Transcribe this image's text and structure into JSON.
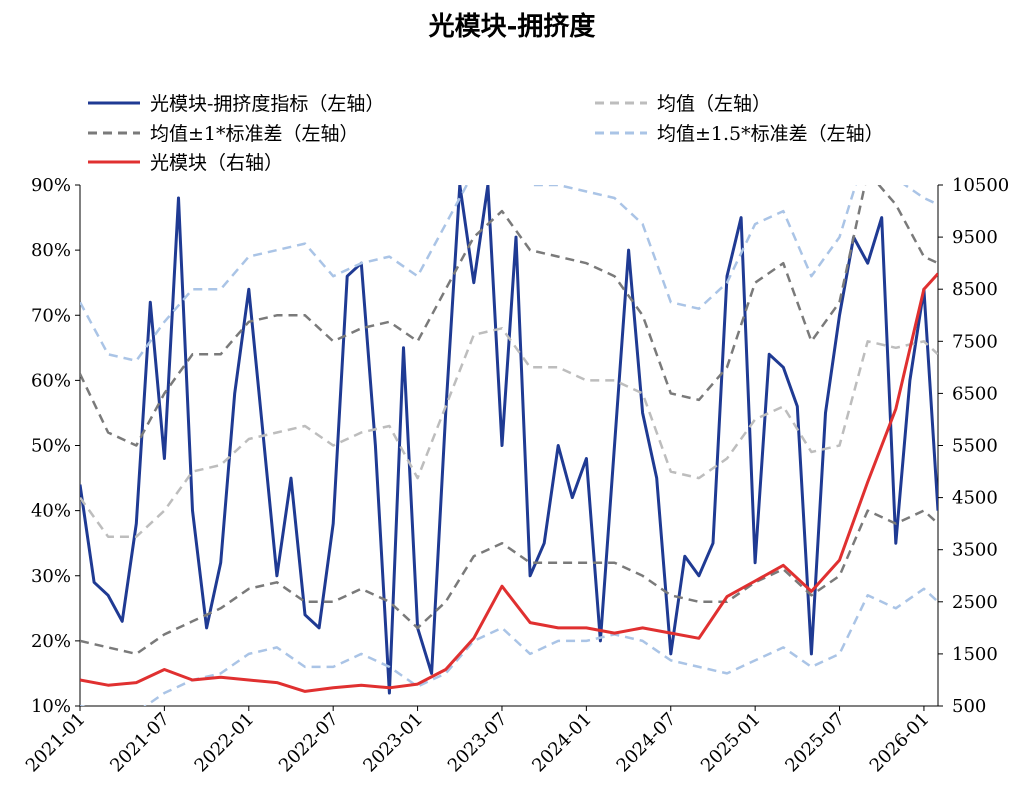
{
  "chart_data": {
    "type": "line",
    "title": "光模块-拥挤度",
    "legend_position": "top",
    "grid": false,
    "y_left": {
      "min": 0.1,
      "max": 0.9,
      "ticks": [
        "10%",
        "20%",
        "30%",
        "40%",
        "50%",
        "60%",
        "70%",
        "80%",
        "90%"
      ]
    },
    "y_right": {
      "min": 500,
      "max": 10500,
      "ticks": [
        "500",
        "1500",
        "2500",
        "3500",
        "4500",
        "5500",
        "6500",
        "7500",
        "8500",
        "9500",
        "10500"
      ]
    },
    "x_ticks": [
      "2021-01",
      "2021-07",
      "2022-01",
      "2022-07",
      "2023-01",
      "2023-07",
      "2024-01",
      "2024-07",
      "2025-01",
      "2025-07",
      "2026-01"
    ],
    "x_range": [
      "2021-01",
      "2026-02"
    ],
    "series": [
      {
        "name": "光模块-拥挤度指标（左轴）",
        "axis": "left",
        "color": "#1f3a93",
        "style": "solid",
        "points": [
          [
            "2021-01",
            0.44
          ],
          [
            "2021-02",
            0.29
          ],
          [
            "2021-03",
            0.27
          ],
          [
            "2021-04",
            0.23
          ],
          [
            "2021-05",
            0.38
          ],
          [
            "2021-06",
            0.72
          ],
          [
            "2021-07",
            0.48
          ],
          [
            "2021-08",
            0.88
          ],
          [
            "2021-09",
            0.4
          ],
          [
            "2021-10",
            0.22
          ],
          [
            "2021-11",
            0.32
          ],
          [
            "2021-12",
            0.58
          ],
          [
            "2022-01",
            0.74
          ],
          [
            "2022-02",
            0.52
          ],
          [
            "2022-03",
            0.3
          ],
          [
            "2022-04",
            0.45
          ],
          [
            "2022-05",
            0.24
          ],
          [
            "2022-06",
            0.22
          ],
          [
            "2022-07",
            0.38
          ],
          [
            "2022-08",
            0.76
          ],
          [
            "2022-09",
            0.78
          ],
          [
            "2022-10",
            0.5
          ],
          [
            "2022-11",
            0.12
          ],
          [
            "2022-12",
            0.65
          ],
          [
            "2023-01",
            0.22
          ],
          [
            "2023-02",
            0.15
          ],
          [
            "2023-03",
            0.55
          ],
          [
            "2023-04",
            0.9
          ],
          [
            "2023-05",
            0.75
          ],
          [
            "2023-06",
            0.9
          ],
          [
            "2023-07",
            0.5
          ],
          [
            "2023-08",
            0.82
          ],
          [
            "2023-09",
            0.3
          ],
          [
            "2023-10",
            0.35
          ],
          [
            "2023-11",
            0.5
          ],
          [
            "2023-12",
            0.42
          ],
          [
            "2024-01",
            0.48
          ],
          [
            "2024-02",
            0.2
          ],
          [
            "2024-03",
            0.5
          ],
          [
            "2024-04",
            0.8
          ],
          [
            "2024-05",
            0.55
          ],
          [
            "2024-06",
            0.45
          ],
          [
            "2024-07",
            0.18
          ],
          [
            "2024-08",
            0.33
          ],
          [
            "2024-09",
            0.3
          ],
          [
            "2024-10",
            0.35
          ],
          [
            "2024-11",
            0.76
          ],
          [
            "2024-12",
            0.85
          ],
          [
            "2025-01",
            0.32
          ],
          [
            "2025-02",
            0.64
          ],
          [
            "2025-03",
            0.62
          ],
          [
            "2025-04",
            0.56
          ],
          [
            "2025-05",
            0.18
          ],
          [
            "2025-06",
            0.55
          ],
          [
            "2025-07",
            0.7
          ],
          [
            "2025-08",
            0.82
          ],
          [
            "2025-09",
            0.78
          ],
          [
            "2025-10",
            0.85
          ],
          [
            "2025-11",
            0.35
          ],
          [
            "2025-12",
            0.6
          ],
          [
            "2026-01",
            0.74
          ],
          [
            "2026-02",
            0.4
          ]
        ]
      },
      {
        "name": "均值（左轴）",
        "axis": "left",
        "color": "#bdbdbd",
        "style": "dashed",
        "points": [
          [
            "2021-01",
            0.42
          ],
          [
            "2021-03",
            0.36
          ],
          [
            "2021-05",
            0.36
          ],
          [
            "2021-07",
            0.4
          ],
          [
            "2021-09",
            0.46
          ],
          [
            "2021-11",
            0.47
          ],
          [
            "2022-01",
            0.51
          ],
          [
            "2022-03",
            0.52
          ],
          [
            "2022-05",
            0.53
          ],
          [
            "2022-07",
            0.5
          ],
          [
            "2022-09",
            0.52
          ],
          [
            "2022-11",
            0.53
          ],
          [
            "2023-01",
            0.45
          ],
          [
            "2023-03",
            0.56
          ],
          [
            "2023-05",
            0.67
          ],
          [
            "2023-07",
            0.68
          ],
          [
            "2023-09",
            0.62
          ],
          [
            "2023-11",
            0.62
          ],
          [
            "2024-01",
            0.6
          ],
          [
            "2024-03",
            0.6
          ],
          [
            "2024-05",
            0.58
          ],
          [
            "2024-07",
            0.46
          ],
          [
            "2024-09",
            0.45
          ],
          [
            "2024-11",
            0.48
          ],
          [
            "2025-01",
            0.54
          ],
          [
            "2025-03",
            0.56
          ],
          [
            "2025-05",
            0.49
          ],
          [
            "2025-07",
            0.5
          ],
          [
            "2025-09",
            0.66
          ],
          [
            "2025-11",
            0.65
          ],
          [
            "2026-01",
            0.66
          ],
          [
            "2026-02",
            0.64
          ]
        ]
      },
      {
        "name": "均值±1*标准差（左轴）",
        "axis": "left",
        "color": "#7a7a7a",
        "style": "dashed",
        "points": [
          [
            "2021-01",
            0.61
          ],
          [
            "2021-03",
            0.52
          ],
          [
            "2021-05",
            0.5
          ],
          [
            "2021-07",
            0.58
          ],
          [
            "2021-09",
            0.64
          ],
          [
            "2021-11",
            0.64
          ],
          [
            "2022-01",
            0.69
          ],
          [
            "2022-03",
            0.7
          ],
          [
            "2022-05",
            0.7
          ],
          [
            "2022-07",
            0.66
          ],
          [
            "2022-09",
            0.68
          ],
          [
            "2022-11",
            0.69
          ],
          [
            "2023-01",
            0.66
          ],
          [
            "2023-03",
            0.74
          ],
          [
            "2023-05",
            0.82
          ],
          [
            "2023-07",
            0.86
          ],
          [
            "2023-09",
            0.8
          ],
          [
            "2023-11",
            0.79
          ],
          [
            "2024-01",
            0.78
          ],
          [
            "2024-03",
            0.76
          ],
          [
            "2024-05",
            0.7
          ],
          [
            "2024-07",
            0.58
          ],
          [
            "2024-09",
            0.57
          ],
          [
            "2024-11",
            0.62
          ],
          [
            "2025-01",
            0.75
          ],
          [
            "2025-03",
            0.78
          ],
          [
            "2025-05",
            0.66
          ],
          [
            "2025-07",
            0.72
          ],
          [
            "2025-09",
            0.92
          ],
          [
            "2025-11",
            0.87
          ],
          [
            "2026-01",
            0.79
          ],
          [
            "2026-02",
            0.78
          ]
        ]
      },
      {
        "name": "均值±1*标准差（左轴）_lower",
        "axis": "left",
        "color": "#7a7a7a",
        "style": "dashed",
        "points": [
          [
            "2021-01",
            0.2
          ],
          [
            "2021-03",
            0.19
          ],
          [
            "2021-05",
            0.18
          ],
          [
            "2021-07",
            0.21
          ],
          [
            "2021-09",
            0.23
          ],
          [
            "2021-11",
            0.25
          ],
          [
            "2022-01",
            0.28
          ],
          [
            "2022-03",
            0.29
          ],
          [
            "2022-05",
            0.26
          ],
          [
            "2022-07",
            0.26
          ],
          [
            "2022-09",
            0.28
          ],
          [
            "2022-11",
            0.26
          ],
          [
            "2023-01",
            0.22
          ],
          [
            "2023-03",
            0.26
          ],
          [
            "2023-05",
            0.33
          ],
          [
            "2023-07",
            0.35
          ],
          [
            "2023-09",
            0.32
          ],
          [
            "2023-11",
            0.32
          ],
          [
            "2024-01",
            0.32
          ],
          [
            "2024-03",
            0.32
          ],
          [
            "2024-05",
            0.3
          ],
          [
            "2024-07",
            0.27
          ],
          [
            "2024-09",
            0.26
          ],
          [
            "2024-11",
            0.26
          ],
          [
            "2025-01",
            0.29
          ],
          [
            "2025-03",
            0.31
          ],
          [
            "2025-05",
            0.27
          ],
          [
            "2025-07",
            0.3
          ],
          [
            "2025-09",
            0.4
          ],
          [
            "2025-11",
            0.38
          ],
          [
            "2026-01",
            0.4
          ],
          [
            "2026-02",
            0.38
          ]
        ]
      },
      {
        "name": "均值±1.5*标准差（左轴）",
        "axis": "left",
        "color": "#aac4e6",
        "style": "dashed",
        "points": [
          [
            "2021-01",
            0.72
          ],
          [
            "2021-03",
            0.64
          ],
          [
            "2021-05",
            0.63
          ],
          [
            "2021-07",
            0.69
          ],
          [
            "2021-09",
            0.74
          ],
          [
            "2021-11",
            0.74
          ],
          [
            "2022-01",
            0.79
          ],
          [
            "2022-03",
            0.8
          ],
          [
            "2022-05",
            0.81
          ],
          [
            "2022-07",
            0.76
          ],
          [
            "2022-09",
            0.78
          ],
          [
            "2022-11",
            0.79
          ],
          [
            "2023-01",
            0.76
          ],
          [
            "2023-03",
            0.84
          ],
          [
            "2023-05",
            0.92
          ],
          [
            "2023-07",
            0.95
          ],
          [
            "2023-09",
            0.9
          ],
          [
            "2023-11",
            0.9
          ],
          [
            "2024-01",
            0.89
          ],
          [
            "2024-03",
            0.88
          ],
          [
            "2024-05",
            0.84
          ],
          [
            "2024-07",
            0.72
          ],
          [
            "2024-09",
            0.71
          ],
          [
            "2024-11",
            0.75
          ],
          [
            "2025-01",
            0.84
          ],
          [
            "2025-03",
            0.86
          ],
          [
            "2025-05",
            0.76
          ],
          [
            "2025-07",
            0.82
          ],
          [
            "2025-09",
            0.96
          ],
          [
            "2025-11",
            0.91
          ],
          [
            "2026-01",
            0.88
          ],
          [
            "2026-02",
            0.87
          ]
        ]
      },
      {
        "name": "均值±1.5*标准差（左轴）_lower",
        "axis": "left",
        "color": "#aac4e6",
        "style": "dashed",
        "points": [
          [
            "2021-01",
            0.1
          ],
          [
            "2021-03",
            0.09
          ],
          [
            "2021-05",
            0.09
          ],
          [
            "2021-07",
            0.12
          ],
          [
            "2021-09",
            0.14
          ],
          [
            "2021-11",
            0.15
          ],
          [
            "2022-01",
            0.18
          ],
          [
            "2022-03",
            0.19
          ],
          [
            "2022-05",
            0.16
          ],
          [
            "2022-07",
            0.16
          ],
          [
            "2022-09",
            0.18
          ],
          [
            "2022-11",
            0.16
          ],
          [
            "2023-01",
            0.13
          ],
          [
            "2023-03",
            0.15
          ],
          [
            "2023-05",
            0.2
          ],
          [
            "2023-07",
            0.22
          ],
          [
            "2023-09",
            0.18
          ],
          [
            "2023-11",
            0.2
          ],
          [
            "2024-01",
            0.2
          ],
          [
            "2024-03",
            0.21
          ],
          [
            "2024-05",
            0.2
          ],
          [
            "2024-07",
            0.17
          ],
          [
            "2024-09",
            0.16
          ],
          [
            "2024-11",
            0.15
          ],
          [
            "2025-01",
            0.17
          ],
          [
            "2025-03",
            0.19
          ],
          [
            "2025-05",
            0.16
          ],
          [
            "2025-07",
            0.18
          ],
          [
            "2025-09",
            0.27
          ],
          [
            "2025-11",
            0.25
          ],
          [
            "2026-01",
            0.28
          ],
          [
            "2026-02",
            0.26
          ]
        ]
      },
      {
        "name": "光模块（右轴）",
        "axis": "right",
        "color": "#e03030",
        "style": "solid",
        "points": [
          [
            "2021-01",
            1000
          ],
          [
            "2021-03",
            900
          ],
          [
            "2021-05",
            950
          ],
          [
            "2021-07",
            1200
          ],
          [
            "2021-09",
            1000
          ],
          [
            "2021-11",
            1050
          ],
          [
            "2022-01",
            1000
          ],
          [
            "2022-03",
            950
          ],
          [
            "2022-05",
            780
          ],
          [
            "2022-07",
            850
          ],
          [
            "2022-09",
            900
          ],
          [
            "2022-11",
            850
          ],
          [
            "2023-01",
            920
          ],
          [
            "2023-03",
            1200
          ],
          [
            "2023-05",
            1800
          ],
          [
            "2023-07",
            2800
          ],
          [
            "2023-09",
            2100
          ],
          [
            "2023-11",
            2000
          ],
          [
            "2024-01",
            2000
          ],
          [
            "2024-03",
            1900
          ],
          [
            "2024-05",
            2000
          ],
          [
            "2024-07",
            1900
          ],
          [
            "2024-09",
            1800
          ],
          [
            "2024-11",
            2600
          ],
          [
            "2025-01",
            2900
          ],
          [
            "2025-03",
            3200
          ],
          [
            "2025-05",
            2700
          ],
          [
            "2025-07",
            3300
          ],
          [
            "2025-09",
            4800
          ],
          [
            "2025-11",
            6200
          ],
          [
            "2026-01",
            8500
          ],
          [
            "2026-02",
            8800
          ]
        ]
      }
    ]
  },
  "legend": {
    "items": [
      {
        "label": "光模块-拥挤度指标（左轴）",
        "color": "#1f3a93",
        "style": "solid"
      },
      {
        "label": "均值（左轴）",
        "color": "#bdbdbd",
        "style": "dashed"
      },
      {
        "label": "均值±1*标准差（左轴）",
        "color": "#7a7a7a",
        "style": "dashed"
      },
      {
        "label": "均值±1.5*标准差（左轴）",
        "color": "#aac4e6",
        "style": "dashed"
      },
      {
        "label": "光模块（右轴）",
        "color": "#e03030",
        "style": "solid"
      }
    ]
  }
}
